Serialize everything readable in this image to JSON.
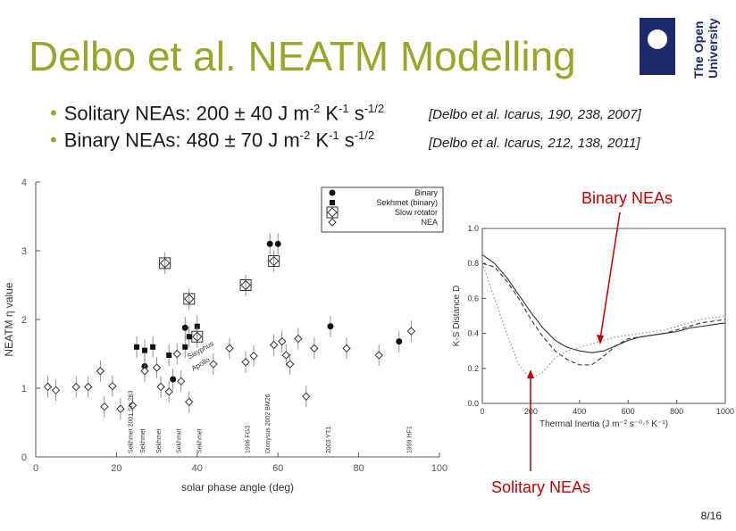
{
  "slide": {
    "title": "Delbo et al. NEATM Modelling",
    "bullets": [
      {
        "text": "Solitary NEAs: 200 ± 40 J m",
        "e1": "-2",
        "k": " K",
        "e2": "-1",
        "s": " s",
        "e3": "-1/2"
      },
      {
        "text": "Binary NEAs: 480 ± 70 J m",
        "e1": "-2",
        "k": " K",
        "e2": "-1",
        "s": " s",
        "e3": "-1/2"
      }
    ],
    "refs": [
      "[Delbo et al. Icarus, 190, 238, 2007]",
      "[Delbo et al. Icarus, 212, 138, 2011]"
    ],
    "binary_label": "Binary NEAs",
    "solitary_label": "Solitary NEAs",
    "page": "8/16",
    "logo_lines": [
      "The Open",
      "University"
    ],
    "colors": {
      "title": "#9aa62a",
      "arrow": "#c00000",
      "logo": "#1b2a6b"
    }
  },
  "chart_data": [
    {
      "type": "scatter",
      "xlabel": "solar phase angle (deg)",
      "ylabel": "NEATM η value",
      "xlim": [
        0,
        100
      ],
      "ylim": [
        0,
        4
      ],
      "xticks": [
        0,
        20,
        40,
        60,
        80,
        100
      ],
      "yticks": [
        0,
        1,
        2,
        3,
        4
      ],
      "legend": {
        "placement": "top-right",
        "entries": [
          "Binary",
          "Sekhmet (binary)",
          "Slow rotator",
          "NEA"
        ]
      },
      "series": [
        {
          "name": "Binary",
          "marker": "filled-circle",
          "points": [
            [
              27,
              1.32
            ],
            [
              34,
              1.13
            ],
            [
              37,
              1.88
            ],
            [
              58,
              3.1
            ],
            [
              60,
              3.1
            ],
            [
              73,
              1.9
            ],
            [
              90,
              1.68
            ]
          ]
        },
        {
          "name": "Sekhmet (binary)",
          "marker": "filled-square",
          "points": [
            [
              25,
              1.6
            ],
            [
              27,
              1.55
            ],
            [
              29,
              1.6
            ],
            [
              33,
              1.48
            ],
            [
              37,
              1.6
            ],
            [
              38,
              1.75
            ],
            [
              40,
              1.9
            ]
          ]
        },
        {
          "name": "Slow rotator",
          "marker": "diamond-in-square",
          "points": [
            [
              32,
              2.82
            ],
            [
              38,
              2.3
            ],
            [
              40,
              1.75
            ],
            [
              52,
              2.5
            ],
            [
              59,
              2.85
            ]
          ]
        },
        {
          "name": "NEA",
          "marker": "open-diamond",
          "points": [
            [
              3,
              1.02
            ],
            [
              5,
              0.97
            ],
            [
              10,
              1.02
            ],
            [
              13,
              1.02
            ],
            [
              16,
              1.25
            ],
            [
              17,
              0.73
            ],
            [
              19,
              1.03
            ],
            [
              21,
              0.7
            ],
            [
              24,
              0.75
            ],
            [
              27,
              1.25
            ],
            [
              30,
              1.3
            ],
            [
              31,
              1.02
            ],
            [
              33,
              0.95
            ],
            [
              35,
              1.5
            ],
            [
              36,
              1.1
            ],
            [
              38,
              0.8
            ],
            [
              44,
              1.35
            ],
            [
              48,
              1.58
            ],
            [
              52,
              1.38
            ],
            [
              54,
              1.47
            ],
            [
              59,
              1.63
            ],
            [
              61,
              1.68
            ],
            [
              62,
              1.48
            ],
            [
              63,
              1.35
            ],
            [
              65,
              1.72
            ],
            [
              67,
              0.88
            ],
            [
              69,
              1.58
            ],
            [
              77,
              1.58
            ],
            [
              85,
              1.48
            ],
            [
              93,
              1.83
            ]
          ]
        }
      ],
      "annotations": [
        "Sisyphus",
        "Apollo",
        "Sekhmet 2001 SN 263",
        "Sekhmet",
        "Sekhmet",
        "Sekhmet",
        "Sekhmet",
        "Sekhmet",
        "Dionysus 2002 BM26",
        "2003 YT1",
        "1999 HF1",
        "1996 FG3"
      ]
    },
    {
      "type": "line",
      "xlabel": "Thermal Inertia (J m⁻² s⁻⁰·⁵ K⁻¹)",
      "ylabel": "K-S Distance D",
      "xlim": [
        0,
        1000
      ],
      "ylim": [
        0.0,
        1.0
      ],
      "xticks": [
        0,
        200,
        400,
        600,
        800,
        1000
      ],
      "yticks": [
        0.0,
        0.2,
        0.4,
        0.6,
        0.8,
        1.0
      ],
      "series": [
        {
          "style": "solid",
          "x": [
            0,
            50,
            100,
            150,
            200,
            250,
            300,
            350,
            400,
            450,
            500,
            550,
            600,
            650,
            700,
            750,
            800,
            850,
            900,
            950,
            1000
          ],
          "y": [
            0.85,
            0.8,
            0.72,
            0.62,
            0.52,
            0.43,
            0.36,
            0.32,
            0.3,
            0.29,
            0.3,
            0.33,
            0.36,
            0.38,
            0.39,
            0.4,
            0.41,
            0.43,
            0.44,
            0.45,
            0.46
          ]
        },
        {
          "style": "dashed",
          "x": [
            0,
            50,
            100,
            150,
            200,
            250,
            300,
            350,
            400,
            450,
            500,
            550,
            600,
            650,
            700,
            750,
            800,
            850,
            900,
            950,
            1000
          ],
          "y": [
            0.8,
            0.78,
            0.7,
            0.6,
            0.48,
            0.38,
            0.3,
            0.25,
            0.22,
            0.22,
            0.27,
            0.33,
            0.37,
            0.38,
            0.39,
            0.4,
            0.42,
            0.44,
            0.46,
            0.47,
            0.48
          ]
        },
        {
          "style": "dotted",
          "x": [
            0,
            50,
            100,
            150,
            200,
            250,
            300,
            350,
            400,
            450,
            500,
            550,
            600,
            650,
            700,
            750,
            800,
            850,
            900,
            950,
            1000
          ],
          "y": [
            0.8,
            0.6,
            0.4,
            0.22,
            0.14,
            0.18,
            0.26,
            0.3,
            0.32,
            0.34,
            0.36,
            0.38,
            0.39,
            0.4,
            0.41,
            0.42,
            0.44,
            0.46,
            0.48,
            0.49,
            0.5
          ]
        }
      ]
    }
  ]
}
